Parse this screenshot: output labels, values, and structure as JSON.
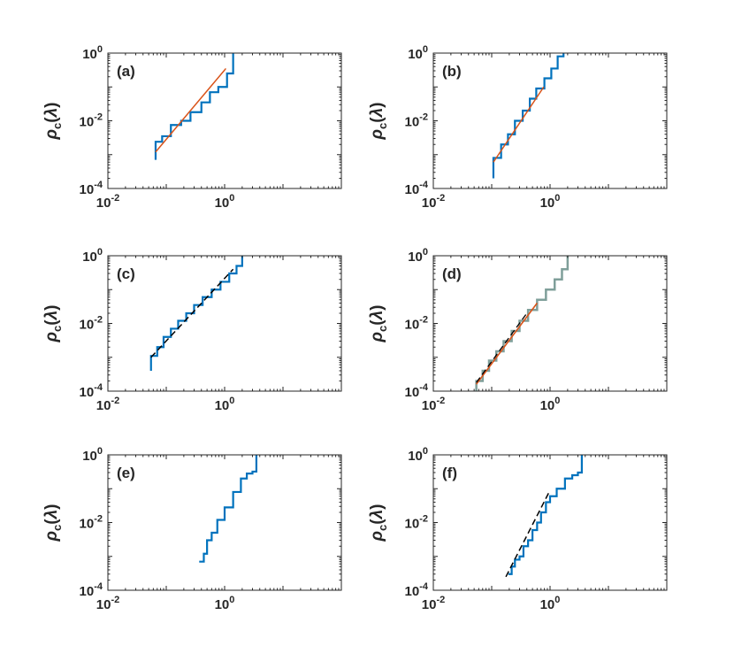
{
  "figure": {
    "ylabel": {
      "symbol": "ρ",
      "subscript": "c",
      "open": "(",
      "arg": "λ",
      "close": ")"
    }
  },
  "colors": {
    "blue": "#0072BD",
    "orange": "#D95319",
    "black": "#000000",
    "gray": "#7f9f9a",
    "axis": "#262626"
  },
  "chart_data": [
    {
      "type": "line",
      "panel_label": "(a)",
      "xscale": "log",
      "yscale": "log",
      "xlim": [
        0.01,
        100
      ],
      "ylim": [
        0.0001,
        1
      ],
      "xticks": [
        {
          "v": 0.01,
          "base": "10",
          "exp": "-2"
        },
        {
          "v": 1,
          "base": "10",
          "exp": "0"
        }
      ],
      "yticks": [
        {
          "v": 0.0001,
          "base": "10",
          "exp": "-4"
        },
        {
          "v": 0.01,
          "base": "10",
          "exp": "-2"
        },
        {
          "v": 1,
          "base": "10",
          "exp": "0"
        }
      ],
      "series": [
        {
          "style": "step",
          "color": "#0072BD",
          "width": 2.2,
          "x": [
            0.0657,
            0.0657,
            0.0657,
            0.085,
            0.12,
            0.18,
            0.26,
            0.4,
            0.56,
            0.78,
            1.1,
            1.4,
            1.4
          ],
          "y": [
            0.0007,
            0.002,
            0.0024,
            0.0035,
            0.0075,
            0.01,
            0.018,
            0.035,
            0.07,
            0.1,
            0.25,
            0.9,
            1.0
          ]
        },
        {
          "style": "line",
          "color": "#D95319",
          "width": 1.5,
          "x": [
            0.0657,
            1.05
          ],
          "y": [
            0.0012,
            0.35
          ]
        }
      ]
    },
    {
      "type": "line",
      "panel_label": "(b)",
      "xscale": "log",
      "yscale": "log",
      "xlim": [
        0.01,
        100
      ],
      "ylim": [
        0.0001,
        1
      ],
      "xticks": [
        {
          "v": 0.01,
          "base": "10",
          "exp": "-2"
        },
        {
          "v": 1,
          "base": "10",
          "exp": "0"
        }
      ],
      "yticks": [
        {
          "v": 0.0001,
          "base": "10",
          "exp": "-4"
        },
        {
          "v": 0.01,
          "base": "10",
          "exp": "-2"
        },
        {
          "v": 1,
          "base": "10",
          "exp": "0"
        }
      ],
      "series": [
        {
          "style": "step",
          "color": "#0072BD",
          "width": 2.2,
          "x": [
            0.107,
            0.107,
            0.107,
            0.145,
            0.19,
            0.25,
            0.34,
            0.45,
            0.58,
            0.8,
            1.05,
            1.35,
            1.7
          ],
          "y": [
            0.0002,
            0.0006,
            0.0008,
            0.002,
            0.004,
            0.01,
            0.02,
            0.045,
            0.09,
            0.18,
            0.35,
            0.8,
            1.0
          ]
        },
        {
          "style": "line",
          "color": "#D95319",
          "width": 1.5,
          "x": [
            0.107,
            0.78
          ],
          "y": [
            0.0006,
            0.1
          ]
        }
      ]
    },
    {
      "type": "line",
      "panel_label": "(c)",
      "xscale": "log",
      "yscale": "log",
      "xlim": [
        0.01,
        100
      ],
      "ylim": [
        0.0001,
        1
      ],
      "xticks": [
        {
          "v": 0.01,
          "base": "10",
          "exp": "-2"
        },
        {
          "v": 1,
          "base": "10",
          "exp": "0"
        }
      ],
      "yticks": [
        {
          "v": 0.0001,
          "base": "10",
          "exp": "-4"
        },
        {
          "v": 0.01,
          "base": "10",
          "exp": "-2"
        },
        {
          "v": 1,
          "base": "10",
          "exp": "0"
        }
      ],
      "series": [
        {
          "style": "step",
          "color": "#0072BD",
          "width": 2.2,
          "x": [
            0.0548,
            0.0548,
            0.0548,
            0.07,
            0.09,
            0.12,
            0.16,
            0.22,
            0.3,
            0.42,
            0.6,
            0.85,
            1.2,
            1.6,
            2.0,
            2.0
          ],
          "y": [
            0.0004,
            0.0009,
            0.0011,
            0.002,
            0.004,
            0.007,
            0.012,
            0.02,
            0.035,
            0.06,
            0.1,
            0.17,
            0.3,
            0.5,
            0.8,
            1.0
          ]
        },
        {
          "style": "dash",
          "color": "#000000",
          "width": 1.5,
          "x": [
            0.0548,
            1.4
          ],
          "y": [
            0.001,
            0.4
          ]
        }
      ]
    },
    {
      "type": "line",
      "panel_label": "(d)",
      "xscale": "log",
      "yscale": "log",
      "xlim": [
        0.01,
        100
      ],
      "ylim": [
        0.0001,
        1
      ],
      "xticks": [
        {
          "v": 0.01,
          "base": "10",
          "exp": "-2"
        },
        {
          "v": 1,
          "base": "10",
          "exp": "0"
        }
      ],
      "yticks": [
        {
          "v": 0.0001,
          "base": "10",
          "exp": "-4"
        },
        {
          "v": 0.01,
          "base": "10",
          "exp": "-2"
        },
        {
          "v": 1,
          "base": "10",
          "exp": "0"
        }
      ],
      "series": [
        {
          "style": "step",
          "color": "#7f9f9a",
          "width": 2.5,
          "x": [
            0.0546,
            0.0546,
            0.07,
            0.09,
            0.12,
            0.16,
            0.22,
            0.3,
            0.42,
            0.6,
            0.85,
            1.2,
            1.6,
            2.0,
            2.0
          ],
          "y": [
            0.0001,
            0.0002,
            0.0004,
            0.0008,
            0.0015,
            0.003,
            0.006,
            0.012,
            0.025,
            0.05,
            0.1,
            0.2,
            0.4,
            0.8,
            1.0
          ]
        },
        {
          "style": "line",
          "color": "#D95319",
          "width": 1.6,
          "x": [
            0.0546,
            0.6
          ],
          "y": [
            0.00016,
            0.04
          ]
        },
        {
          "style": "dash",
          "color": "#000000",
          "width": 1.3,
          "x": [
            0.0546,
            0.4
          ],
          "y": [
            0.00018,
            0.02
          ]
        }
      ]
    },
    {
      "type": "line",
      "panel_label": "(e)",
      "xscale": "log",
      "yscale": "log",
      "xlim": [
        0.01,
        100
      ],
      "ylim": [
        0.0001,
        1
      ],
      "xticks": [
        {
          "v": 0.01,
          "base": "10",
          "exp": "-2"
        },
        {
          "v": 1,
          "base": "10",
          "exp": "0"
        }
      ],
      "yticks": [
        {
          "v": 0.0001,
          "base": "10",
          "exp": "-4"
        },
        {
          "v": 0.01,
          "base": "10",
          "exp": "-2"
        },
        {
          "v": 1,
          "base": "10",
          "exp": "0"
        }
      ],
      "series": [
        {
          "style": "step",
          "color": "#0072BD",
          "width": 2.2,
          "x": [
            0.367,
            0.44,
            0.5,
            0.6,
            0.75,
            1.0,
            1.4,
            1.9,
            2.4,
            3.0,
            3.5,
            3.5
          ],
          "y": [
            0.0007,
            0.0012,
            0.003,
            0.005,
            0.012,
            0.028,
            0.08,
            0.2,
            0.28,
            0.32,
            0.6,
            1.0
          ]
        }
      ]
    },
    {
      "type": "line",
      "panel_label": "(f)",
      "xscale": "log",
      "yscale": "log",
      "xlim": [
        0.01,
        100
      ],
      "ylim": [
        0.0001,
        1
      ],
      "xticks": [
        {
          "v": 0.01,
          "base": "10",
          "exp": "-2"
        },
        {
          "v": 1,
          "base": "10",
          "exp": "0"
        }
      ],
      "yticks": [
        {
          "v": 0.0001,
          "base": "10",
          "exp": "-4"
        },
        {
          "v": 0.01,
          "base": "10",
          "exp": "-2"
        },
        {
          "v": 1,
          "base": "10",
          "exp": "0"
        }
      ],
      "series": [
        {
          "style": "step",
          "color": "#0072BD",
          "width": 2.2,
          "x": [
            0.193,
            0.22,
            0.25,
            0.3,
            0.35,
            0.42,
            0.5,
            0.6,
            0.7,
            0.85,
            1.0,
            1.3,
            1.8,
            2.4,
            3.0,
            3.5,
            3.5
          ],
          "y": [
            0.0003,
            0.0005,
            0.0008,
            0.001,
            0.002,
            0.003,
            0.006,
            0.01,
            0.02,
            0.04,
            0.06,
            0.1,
            0.2,
            0.25,
            0.3,
            0.6,
            1.0
          ]
        },
        {
          "style": "dash",
          "color": "#000000",
          "width": 1.5,
          "x": [
            0.175,
            1.0
          ],
          "y": [
            0.00025,
            0.09
          ]
        }
      ]
    }
  ]
}
